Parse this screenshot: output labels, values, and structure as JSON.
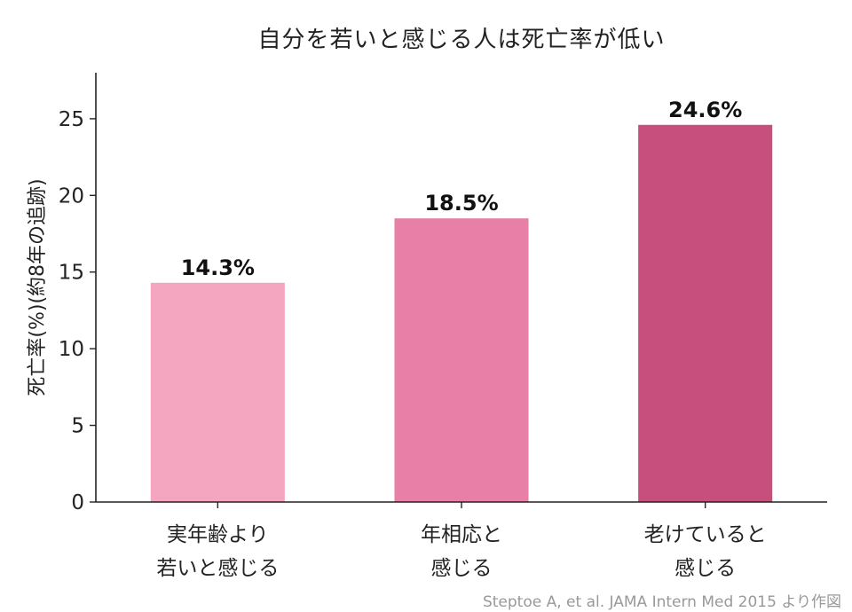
{
  "chart_data": {
    "type": "bar",
    "title": "自分を若いと感じる人は死亡率が低い",
    "ylabel": "死亡率(%)(約8年の追跡)",
    "xlabel": "",
    "categories": [
      [
        "実年齢より",
        "若いと感じる"
      ],
      [
        "年相応と",
        "感じる"
      ],
      [
        "老けていると",
        "感じる"
      ]
    ],
    "values": [
      14.3,
      18.5,
      24.6
    ],
    "value_labels": [
      "14.3%",
      "18.5%",
      "24.6%"
    ],
    "colors": [
      "#f4a6c1",
      "#e87fa6",
      "#c74f7d"
    ],
    "ylim": [
      0,
      28
    ],
    "yticks": [
      0,
      5,
      10,
      15,
      20,
      25
    ],
    "grid": false,
    "legend": "none"
  },
  "source": "Steptoe A, et al. JAMA Intern Med 2015 より作図"
}
